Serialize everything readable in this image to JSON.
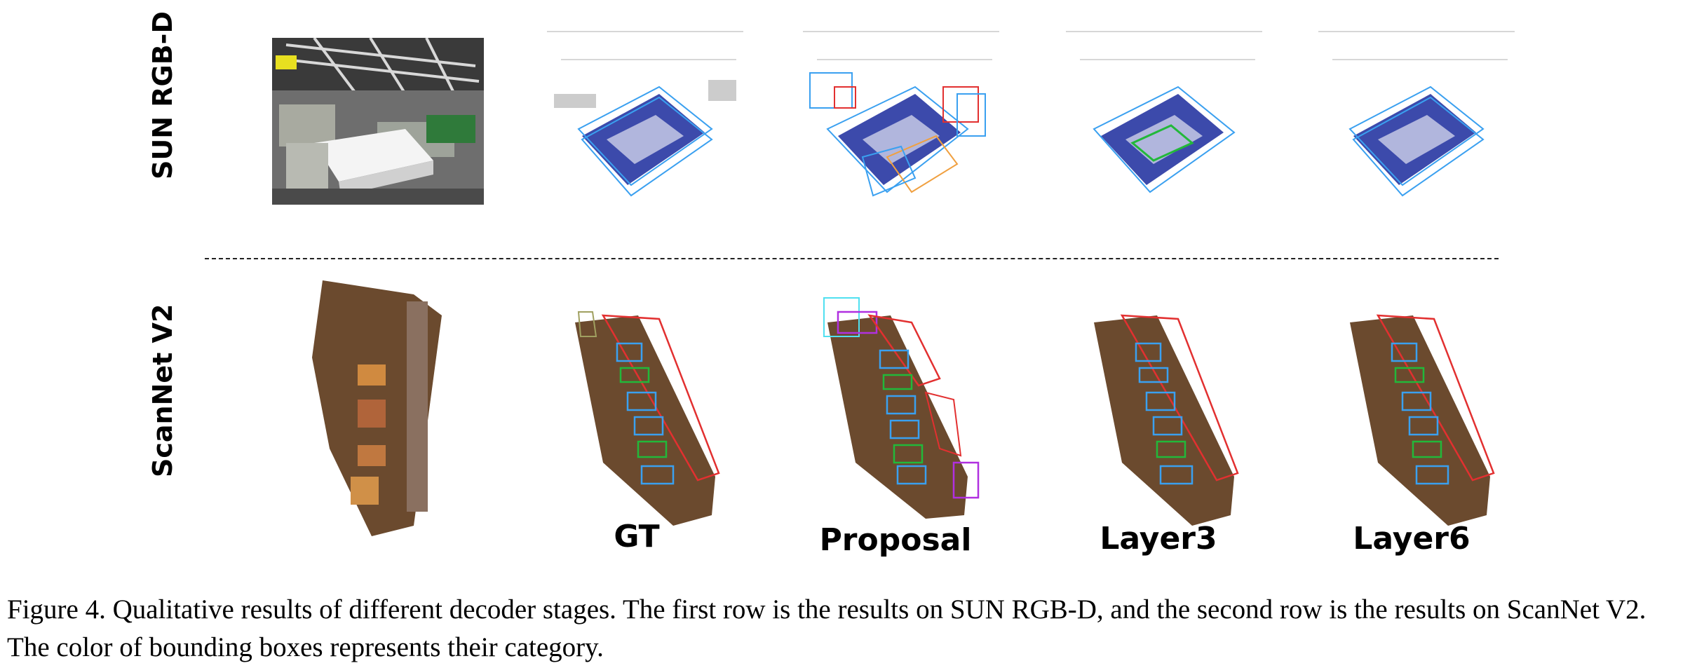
{
  "figure": {
    "rows": [
      {
        "label": "SUN RGB-D"
      },
      {
        "label": "ScanNet V2"
      }
    ],
    "columns": [
      "GT",
      "Proposal",
      "Layer3",
      "Layer6"
    ],
    "colors": {
      "points": "#1a2a9c",
      "gray_points": "#9a9a9a",
      "box_blue": "#3aa0f0",
      "box_red": "#e23030",
      "box_green": "#22b83a",
      "box_orange": "#f0a040",
      "box_magenta": "#b030e0",
      "box_cyan": "#50e0f0",
      "floor": "#6b4a2e"
    }
  },
  "caption": {
    "text": "Figure 4. Qualitative results of different decoder stages. The first row is the results on SUN RGB-D, and the second row is the results on ScanNet V2. The color of bounding boxes represents their category."
  }
}
